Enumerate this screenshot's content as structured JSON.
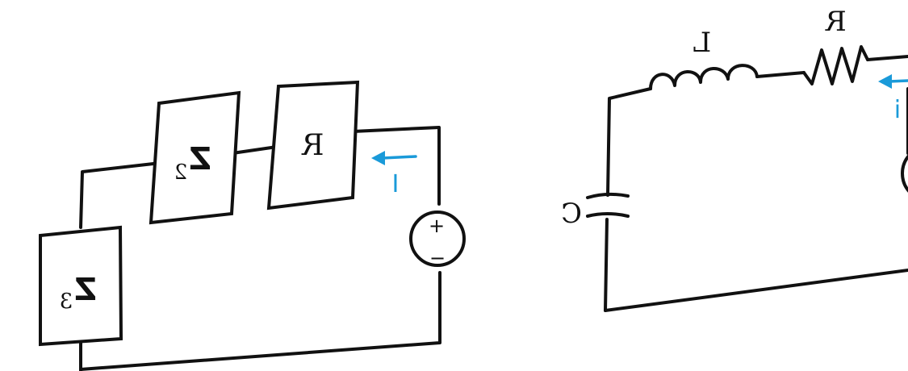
{
  "circuit_left": {
    "components": {
      "z3": {
        "letter": "Z",
        "subscript": "3"
      },
      "z2": {
        "letter": "Z",
        "subscript": "2"
      },
      "r": {
        "label": "R"
      }
    },
    "source": {
      "plus": "+",
      "minus": "−"
    },
    "current": {
      "label": "I",
      "color": "#1a9ad9"
    }
  },
  "circuit_right": {
    "components": {
      "capacitor": {
        "label": "C"
      },
      "inductor": {
        "label": "L"
      },
      "resistor": {
        "label": "R"
      }
    },
    "current": {
      "label": "i",
      "color": "#1a9ad9"
    }
  },
  "note": {
    "mirrored": "The original image is horizontally mirrored; labels are rendered mirrored."
  }
}
